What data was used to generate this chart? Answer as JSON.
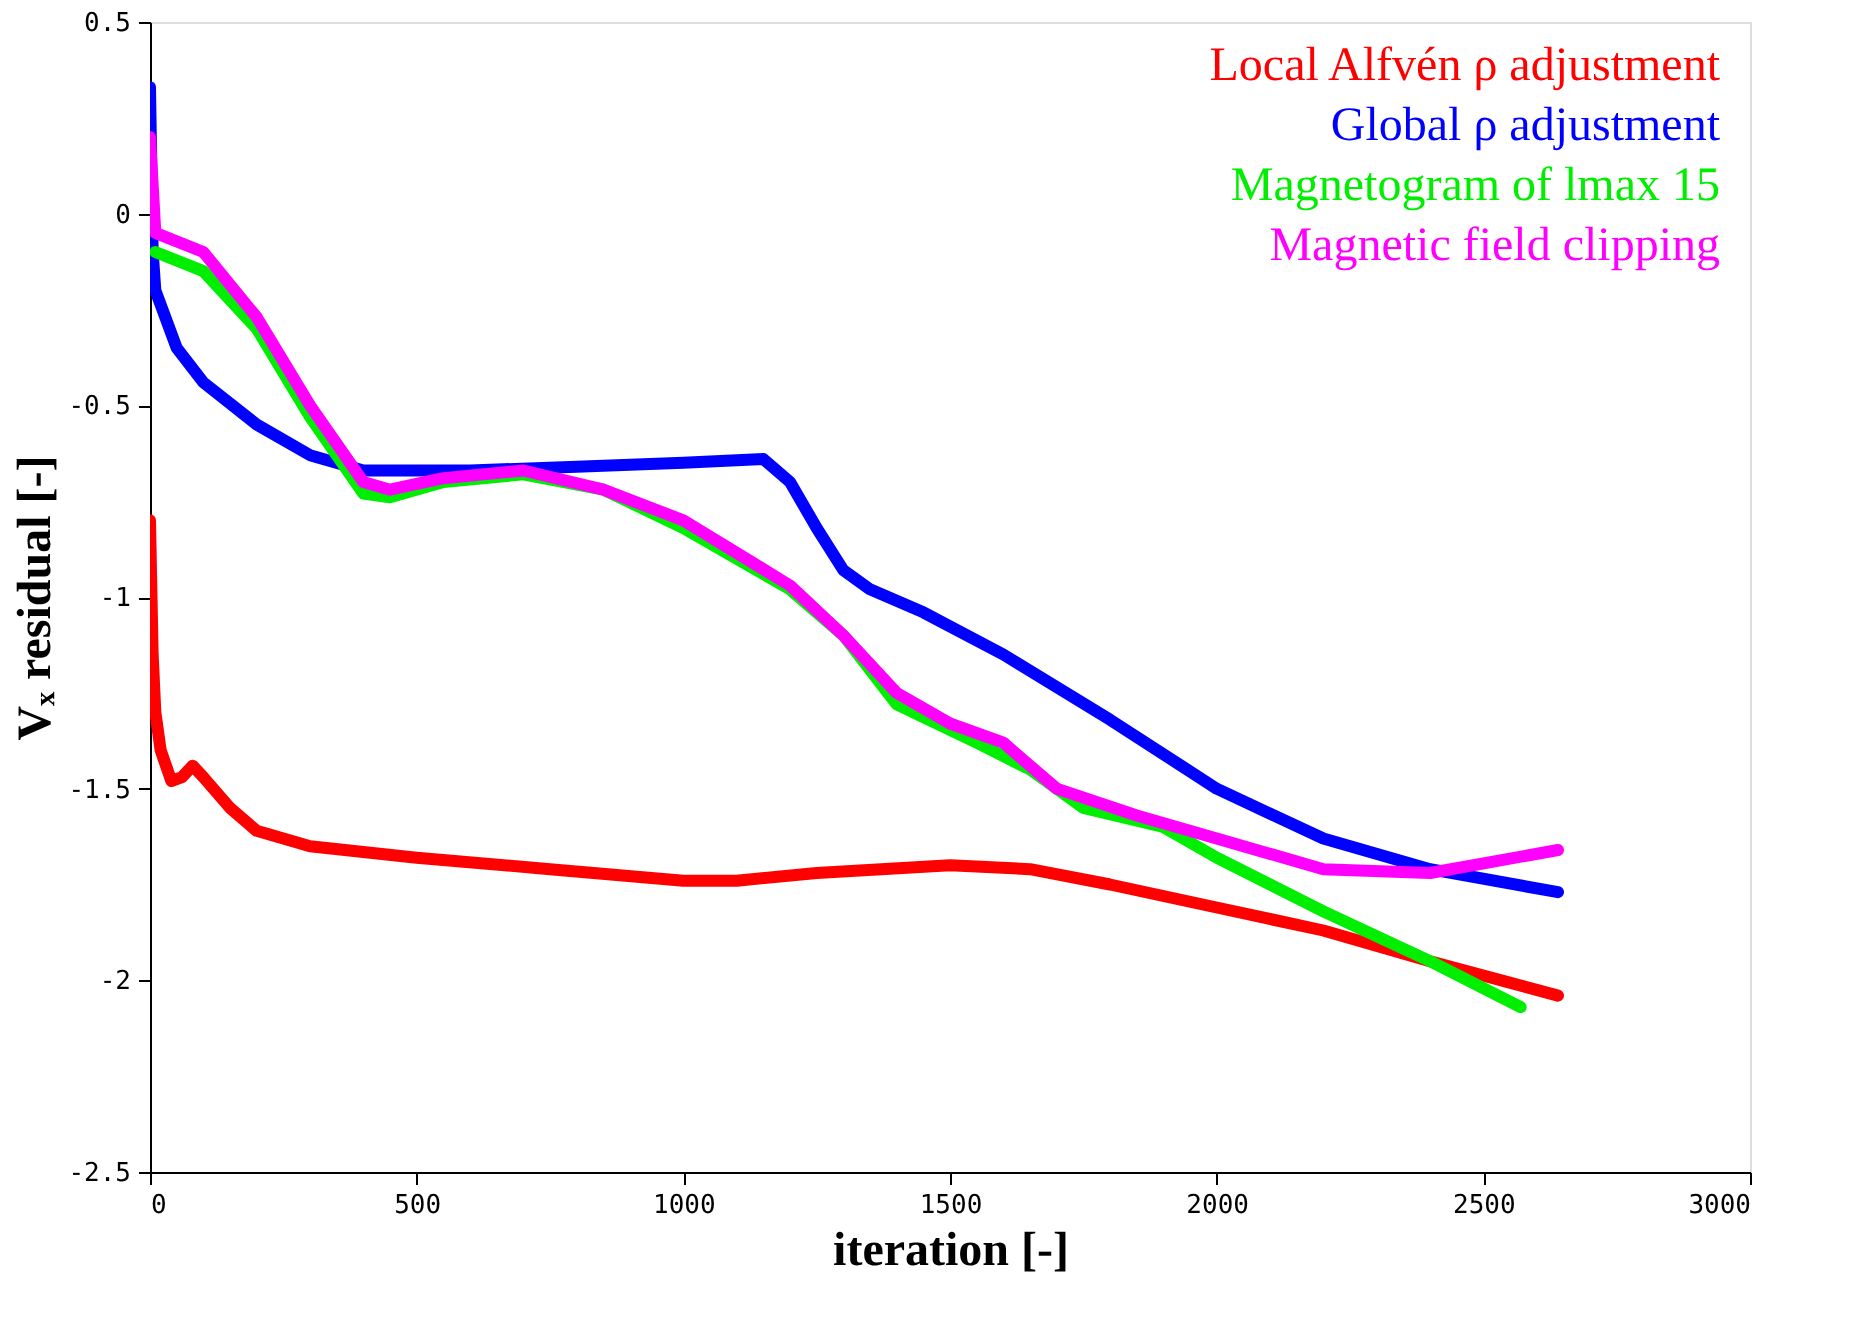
{
  "chart_data": {
    "type": "line",
    "xlabel": "iteration [-]",
    "ylabel": "Vₓ residual [-]",
    "xlim": [
      0,
      3000
    ],
    "ylim": [
      -2.5,
      0.5
    ],
    "xticks": [
      0,
      500,
      1000,
      1500,
      2000,
      2500,
      3000
    ],
    "yticks": [
      0.5,
      0,
      -0.5,
      -1,
      -1.5,
      -2,
      -2.5
    ],
    "grid": false,
    "legend": "top right",
    "marker": "none",
    "line_style": "solid",
    "series": [
      {
        "name": "Local Alfvén ρ adjustment",
        "color": "#ff0000",
        "x": [
          0,
          5,
          10,
          20,
          40,
          60,
          80,
          100,
          150,
          200,
          300,
          500,
          750,
          1000,
          1100,
          1250,
          1500,
          1650,
          1800,
          2000,
          2200,
          2400,
          2640
        ],
        "values": [
          -0.8,
          -1.15,
          -1.3,
          -1.4,
          -1.48,
          -1.47,
          -1.44,
          -1.47,
          -1.55,
          -1.61,
          -1.65,
          -1.68,
          -1.71,
          -1.74,
          -1.74,
          -1.72,
          -1.7,
          -1.71,
          -1.75,
          -1.81,
          -1.87,
          -1.95,
          -2.04
        ]
      },
      {
        "name": "Global ρ adjustment",
        "color": "#0000ff",
        "x": [
          0,
          5,
          10,
          50,
          100,
          200,
          300,
          400,
          600,
          800,
          1000,
          1150,
          1200,
          1250,
          1300,
          1350,
          1450,
          1600,
          1800,
          2000,
          2200,
          2400,
          2640
        ],
        "values": [
          0.33,
          -0.1,
          -0.2,
          -0.35,
          -0.44,
          -0.55,
          -0.63,
          -0.67,
          -0.67,
          -0.66,
          -0.65,
          -0.64,
          -0.7,
          -0.82,
          -0.93,
          -0.98,
          -1.04,
          -1.15,
          -1.32,
          -1.5,
          -1.63,
          -1.71,
          -1.77
        ]
      },
      {
        "name": "Magnetogram of lmax 15",
        "color": "#00ee00",
        "x": [
          10,
          100,
          200,
          300,
          400,
          450,
          550,
          700,
          850,
          1000,
          1200,
          1300,
          1400,
          1550,
          1650,
          1750,
          1900,
          2000,
          2200,
          2400,
          2570
        ],
        "values": [
          -0.1,
          -0.15,
          -0.3,
          -0.53,
          -0.73,
          -0.74,
          -0.7,
          -0.68,
          -0.72,
          -0.82,
          -0.98,
          -1.1,
          -1.28,
          -1.38,
          -1.45,
          -1.55,
          -1.6,
          -1.68,
          -1.82,
          -1.95,
          -2.07
        ]
      },
      {
        "name": "Magnetic field clipping",
        "color": "#ff00ff",
        "x": [
          0,
          10,
          100,
          200,
          300,
          400,
          450,
          550,
          700,
          850,
          1000,
          1200,
          1300,
          1400,
          1500,
          1600,
          1700,
          1850,
          2000,
          2200,
          2400,
          2640
        ],
        "values": [
          0.2,
          -0.05,
          -0.1,
          -0.27,
          -0.5,
          -0.7,
          -0.72,
          -0.69,
          -0.67,
          -0.72,
          -0.8,
          -0.97,
          -1.1,
          -1.25,
          -1.33,
          -1.38,
          -1.5,
          -1.57,
          -1.63,
          -1.71,
          -1.72,
          -1.66
        ]
      }
    ]
  }
}
